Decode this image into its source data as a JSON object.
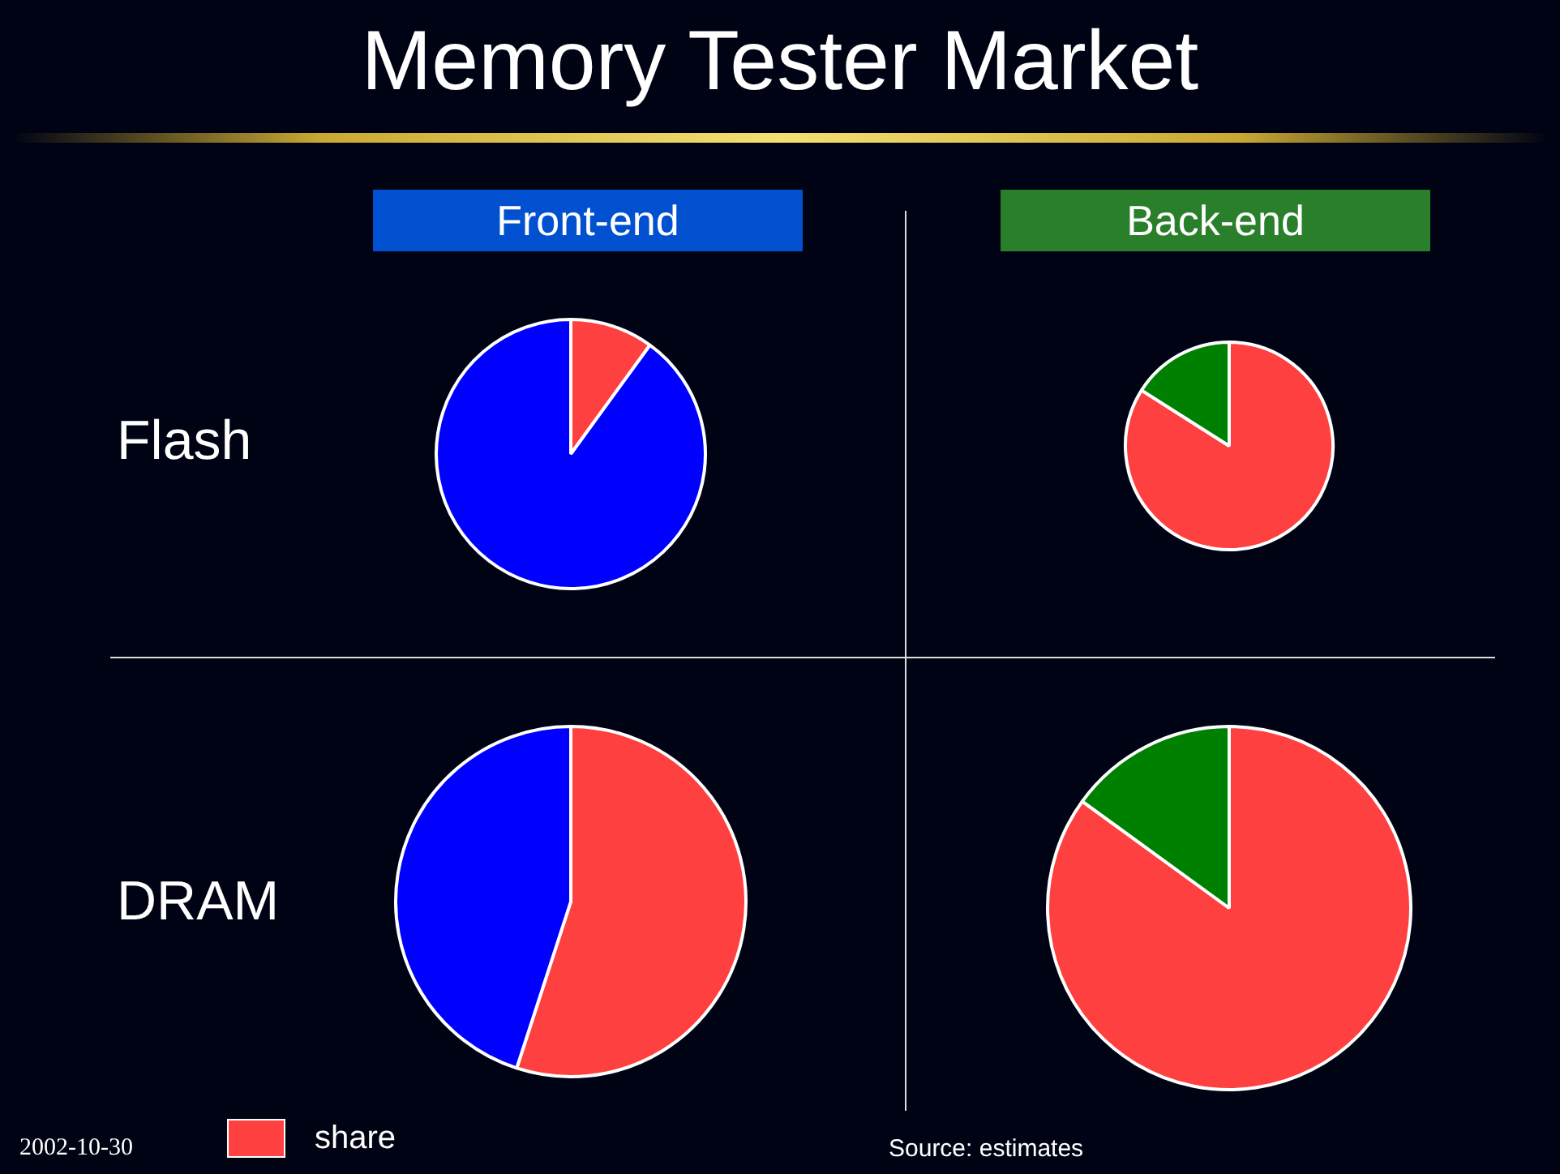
{
  "chart_data": [
    {
      "type": "other",
      "title": "Memory Tester Market",
      "annotations": [
        "2002-10-30",
        "Source: estimates"
      ]
    },
    {
      "type": "pie",
      "title": "Front-end",
      "ylabel": "Flash",
      "categories": [
        "share",
        null
      ],
      "values": [
        10,
        90
      ],
      "colors": [
        "#ff4040",
        "#0000ff"
      ],
      "legend": "bottom left"
    },
    {
      "type": "pie",
      "title": "Back-end",
      "categories": [
        null,
        null
      ],
      "values": [
        84,
        16
      ],
      "colors": [
        "#ff4040",
        "#008000"
      ]
    },
    {
      "type": "pie",
      "ylabel": "DRAM",
      "categories": [
        null,
        null
      ],
      "values": [
        55,
        45
      ],
      "colors": [
        "#ff4040",
        "#0000ff"
      ]
    },
    {
      "type": "pie",
      "categories": [
        null,
        null
      ],
      "values": [
        85,
        15
      ],
      "colors": [
        "#ff4040",
        "#008000"
      ]
    }
  ]
}
